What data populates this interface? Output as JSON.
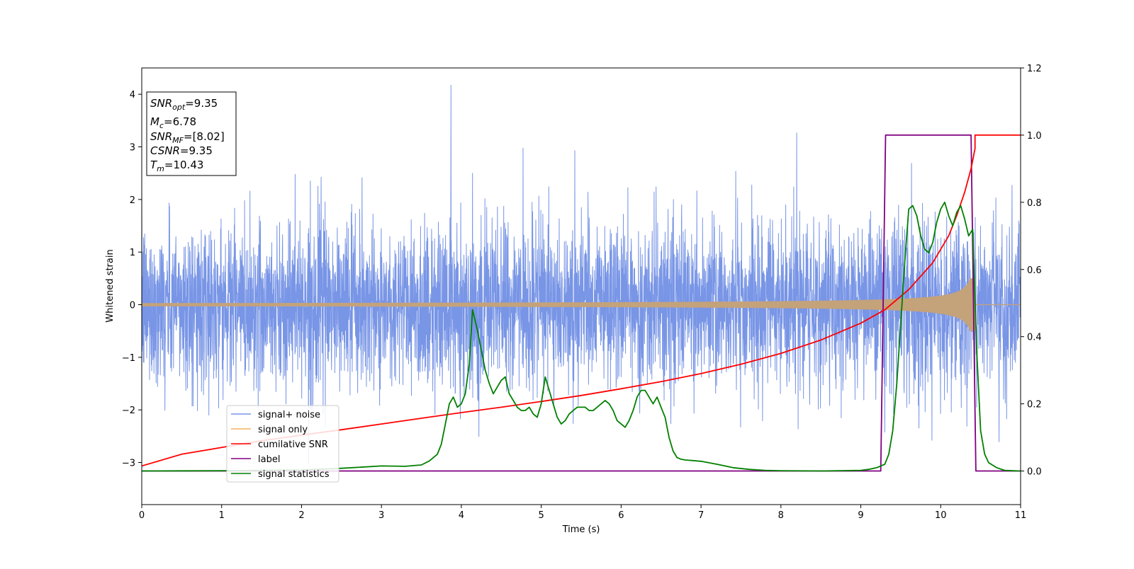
{
  "chart_data": {
    "type": "line",
    "xlabel": "Time (s)",
    "ylabel": "Whitened strain",
    "xlim": [
      0,
      11
    ],
    "ylim_left": [
      -3.8,
      4.5
    ],
    "ylim_right": [
      -0.1,
      1.2
    ],
    "x_ticks": [
      "0",
      "1",
      "2",
      "3",
      "4",
      "5",
      "6",
      "7",
      "8",
      "9",
      "10",
      "11"
    ],
    "y_left_ticks": [
      4,
      3,
      2,
      1,
      0,
      -1,
      -2,
      -3
    ],
    "y_left_tick_labels": [
      "4",
      "3",
      "2",
      "1",
      "0",
      "−1",
      "−2",
      "−3"
    ],
    "y_right_ticks": [
      1.2,
      1.0,
      0.8,
      0.6,
      0.4,
      0.2,
      0.0
    ],
    "y_right_tick_labels": [
      "1.2",
      "1.0",
      "0.8",
      "0.6",
      "0.4",
      "0.2",
      "0.0"
    ],
    "info_box": {
      "snr_opt": {
        "sym": "SNR",
        "sub": "opt",
        "val": "=9.35"
      },
      "mc": {
        "sym": "M",
        "sub": "c",
        "val": "=6.78"
      },
      "snr_mf": {
        "sym": "SNR",
        "sub": "MF",
        "val": "=[8.02]"
      },
      "csnr": {
        "sym": "CSNR",
        "sub": "",
        "val": "=9.35"
      },
      "tm": {
        "sym": "T",
        "sub": "m",
        "val": "=10.43"
      }
    },
    "series": [
      {
        "name": "signal+ noise",
        "axis": "left",
        "color": "#7895e6",
        "style": "noise",
        "range_approx": [
          -3.3,
          4.2
        ],
        "max_point": [
          3.87,
          4.17
        ]
      },
      {
        "name": "signal only",
        "axis": "left",
        "color": "#c4a27a",
        "style": "chirp",
        "merger_time": 10.43,
        "amplitude_start": 0.03,
        "amplitude_peak": 0.5
      },
      {
        "name": "cumilative SNR",
        "axis": "right",
        "color": "#ff0000",
        "x": [
          0,
          0.5,
          1,
          1.5,
          2,
          2.5,
          3,
          3.5,
          4,
          4.5,
          5,
          5.5,
          6,
          6.5,
          7,
          7.5,
          8,
          8.5,
          9,
          9.3,
          9.6,
          9.9,
          10.1,
          10.2,
          10.3,
          10.38,
          10.43,
          10.43,
          11
        ],
        "y": [
          0.015,
          0.05,
          0.07,
          0.09,
          0.107,
          0.123,
          0.14,
          0.157,
          0.174,
          0.19,
          0.207,
          0.225,
          0.245,
          0.266,
          0.29,
          0.318,
          0.35,
          0.39,
          0.44,
          0.48,
          0.54,
          0.62,
          0.7,
          0.76,
          0.83,
          0.9,
          0.96,
          1.0,
          1.0
        ]
      },
      {
        "name": "label",
        "axis": "right",
        "color": "#800080",
        "x": [
          0,
          9.25,
          9.31,
          10.38,
          10.44,
          11
        ],
        "y": [
          0,
          0,
          1,
          1,
          0,
          0
        ]
      },
      {
        "name": "signal statistics",
        "axis": "right",
        "color": "#008000",
        "x": [
          0,
          1,
          2,
          2.5,
          3,
          3.3,
          3.4,
          3.5,
          3.6,
          3.7,
          3.75,
          3.8,
          3.85,
          3.9,
          3.95,
          4.0,
          4.05,
          4.1,
          4.14,
          4.2,
          4.25,
          4.3,
          4.35,
          4.4,
          4.45,
          4.5,
          4.55,
          4.6,
          4.65,
          4.7,
          4.75,
          4.8,
          4.85,
          4.9,
          4.95,
          5.0,
          5.05,
          5.1,
          5.15,
          5.2,
          5.25,
          5.3,
          5.35,
          5.4,
          5.45,
          5.5,
          5.55,
          5.6,
          5.65,
          5.7,
          5.75,
          5.8,
          5.85,
          5.9,
          5.95,
          6.0,
          6.05,
          6.1,
          6.15,
          6.2,
          6.25,
          6.3,
          6.35,
          6.4,
          6.45,
          6.5,
          6.55,
          6.6,
          6.65,
          6.7,
          6.75,
          6.8,
          6.85,
          6.9,
          7.0,
          7.2,
          7.4,
          7.6,
          7.8,
          8.0,
          8.5,
          9.0,
          9.1,
          9.2,
          9.3,
          9.35,
          9.4,
          9.45,
          9.5,
          9.55,
          9.6,
          9.65,
          9.7,
          9.75,
          9.8,
          9.85,
          9.9,
          9.95,
          10.0,
          10.05,
          10.1,
          10.15,
          10.2,
          10.25,
          10.3,
          10.35,
          10.4,
          10.45,
          10.5,
          10.55,
          10.6,
          10.7,
          10.8,
          11
        ],
        "y": [
          0,
          0.001,
          0.003,
          0.008,
          0.015,
          0.014,
          0.016,
          0.018,
          0.03,
          0.05,
          0.08,
          0.14,
          0.2,
          0.22,
          0.19,
          0.2,
          0.23,
          0.32,
          0.48,
          0.42,
          0.36,
          0.3,
          0.26,
          0.23,
          0.25,
          0.27,
          0.28,
          0.23,
          0.21,
          0.19,
          0.18,
          0.18,
          0.19,
          0.17,
          0.16,
          0.2,
          0.28,
          0.24,
          0.2,
          0.16,
          0.14,
          0.15,
          0.17,
          0.18,
          0.19,
          0.19,
          0.19,
          0.18,
          0.18,
          0.19,
          0.2,
          0.21,
          0.2,
          0.18,
          0.15,
          0.14,
          0.13,
          0.15,
          0.18,
          0.22,
          0.24,
          0.24,
          0.22,
          0.2,
          0.22,
          0.19,
          0.16,
          0.1,
          0.06,
          0.04,
          0.035,
          0.033,
          0.032,
          0.031,
          0.029,
          0.02,
          0.01,
          0.005,
          0.002,
          0.001,
          0,
          0.002,
          0.005,
          0.01,
          0.02,
          0.05,
          0.12,
          0.26,
          0.44,
          0.62,
          0.78,
          0.79,
          0.76,
          0.7,
          0.66,
          0.65,
          0.68,
          0.74,
          0.78,
          0.8,
          0.76,
          0.73,
          0.77,
          0.79,
          0.75,
          0.7,
          0.72,
          0.36,
          0.12,
          0.05,
          0.025,
          0.01,
          0.002,
          0
        ]
      }
    ],
    "legend_location": "lower-left"
  }
}
